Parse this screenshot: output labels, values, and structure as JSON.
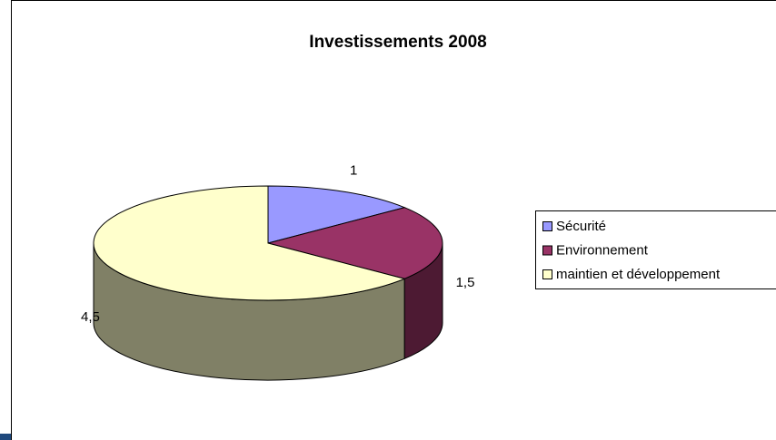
{
  "chart_data": {
    "type": "pie",
    "title": "Investissements 2008",
    "categories": [
      "Sécurité",
      "Environnement",
      "maintien et développement"
    ],
    "values": [
      1,
      1.5,
      4.5
    ],
    "value_labels": [
      "1",
      "1,5",
      "4,5"
    ],
    "colors": [
      "#9999ff",
      "#993366",
      "#ffffcc"
    ],
    "legend": "right"
  }
}
